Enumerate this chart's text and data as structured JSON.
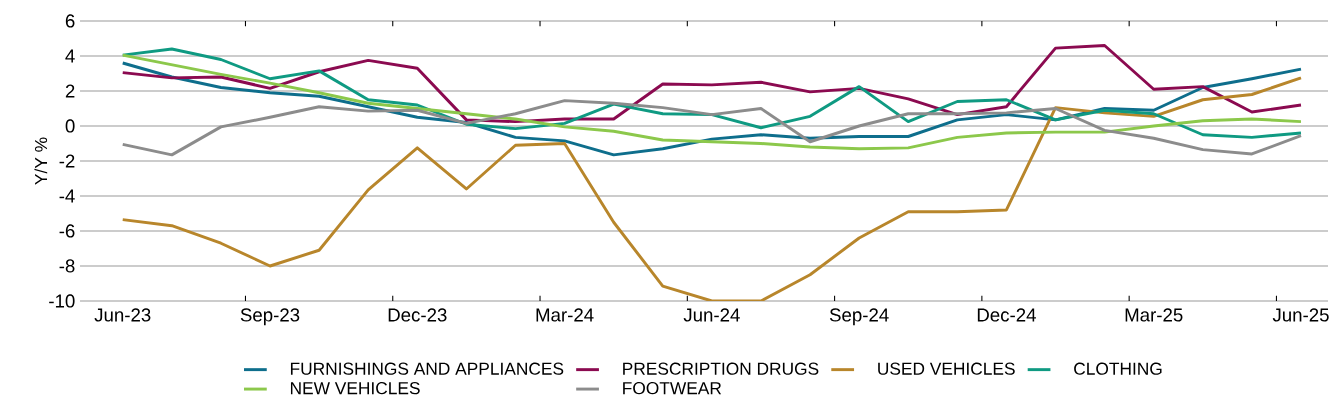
{
  "chart_data": {
    "type": "line",
    "ylabel": "Y/Y %",
    "categories": [
      "Jun-23",
      null,
      null,
      "Sep-23",
      null,
      null,
      "Dec-23",
      null,
      null,
      "Mar-24",
      null,
      null,
      "Jun-24",
      null,
      null,
      "Sep-24",
      null,
      null,
      "Dec-24",
      null,
      null,
      "Mar-25",
      null,
      null,
      "Jun-25"
    ],
    "series": [
      {
        "name": "FURNISHINGS AND APPLIANCES",
        "color": "#0e6e8c",
        "values": [
          3.6,
          2.8,
          2.2,
          1.9,
          1.7,
          1.1,
          0.5,
          0.2,
          -0.65,
          -0.85,
          -1.65,
          -1.3,
          -0.75,
          -0.5,
          -0.7,
          -0.6,
          -0.6,
          0.35,
          0.65,
          0.35,
          1.0,
          0.9,
          2.2,
          2.7,
          3.25
        ]
      },
      {
        "name": "PRESCRIPTION DRUGS",
        "color": "#8b0a50",
        "values": [
          3.05,
          2.75,
          2.8,
          2.15,
          3.1,
          3.75,
          3.3,
          0.35,
          0.25,
          0.4,
          0.4,
          2.4,
          2.35,
          2.5,
          1.95,
          2.15,
          1.55,
          0.65,
          1.1,
          4.45,
          4.6,
          2.1,
          2.25,
          0.8,
          1.2
        ]
      },
      {
        "name": "USED VEHICLES",
        "color": "#b8862b",
        "values": [
          -5.35,
          -5.7,
          -6.7,
          -8.0,
          -7.1,
          -3.65,
          -1.25,
          -3.6,
          -1.1,
          -1.0,
          -5.5,
          -9.15,
          -10.0,
          -10.0,
          -8.5,
          -6.4,
          -4.9,
          -4.9,
          -4.8,
          1.05,
          0.75,
          0.55,
          1.5,
          1.8,
          2.75
        ]
      },
      {
        "name": "CLOTHING",
        "color": "#0f9a82",
        "values": [
          4.05,
          4.4,
          3.8,
          2.7,
          3.15,
          1.5,
          1.2,
          0.1,
          -0.15,
          0.15,
          1.25,
          0.7,
          0.65,
          -0.1,
          0.55,
          2.25,
          0.25,
          1.4,
          1.5,
          0.35,
          0.9,
          0.7,
          -0.5,
          -0.65,
          -0.4
        ]
      },
      {
        "name": "NEW VEHICLES",
        "color": "#8cc84b",
        "values": [
          4.05,
          3.5,
          2.95,
          2.45,
          1.9,
          1.3,
          1.0,
          0.7,
          0.4,
          -0.05,
          -0.3,
          -0.8,
          -0.9,
          -1.0,
          -1.2,
          -1.3,
          -1.25,
          -0.65,
          -0.4,
          -0.35,
          -0.35,
          0.0,
          0.3,
          0.4,
          0.25
        ]
      },
      {
        "name": "FOOTWEAR",
        "color": "#8c8c8c",
        "values": [
          -1.05,
          -1.65,
          -0.05,
          0.5,
          1.1,
          0.85,
          0.9,
          0.15,
          0.7,
          1.45,
          1.3,
          1.05,
          0.65,
          1.0,
          -0.9,
          0.0,
          0.7,
          0.7,
          0.75,
          1.0,
          -0.25,
          -0.7,
          -1.35,
          -1.6,
          -0.55
        ]
      }
    ],
    "ylim": [
      -10,
      6
    ],
    "yticks": [
      -10,
      -8,
      -6,
      -4,
      -2,
      0,
      2,
      4,
      6
    ],
    "grid": "y",
    "legend": "bottom",
    "marker": "none",
    "line_style": "solid"
  }
}
